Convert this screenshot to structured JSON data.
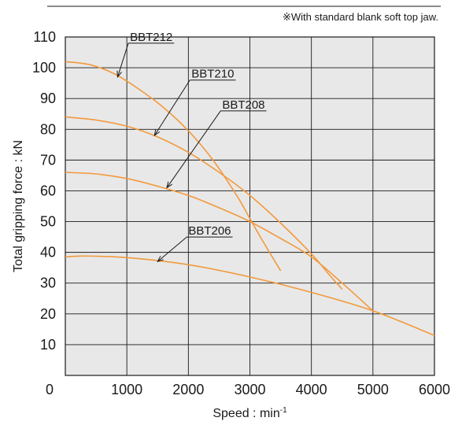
{
  "note": "※With standard blank soft top jaw.",
  "colors": {
    "plot_bg": "#e8e8e8",
    "grid": "#1a1a1a",
    "curve": "#f29a3c",
    "leader": "#1a1a1a",
    "text": "#1a1a1a"
  },
  "chart_data": {
    "type": "line",
    "xlabel": "Speed : min-1",
    "ylabel": "Total gripping force : kN",
    "xlim": [
      0,
      6000
    ],
    "ylim": [
      0,
      110
    ],
    "xticks": [
      0,
      1000,
      2000,
      3000,
      4000,
      5000,
      6000
    ],
    "xtick_labels": [
      "0",
      "1000",
      "2000",
      "3000",
      "4000",
      "5000",
      "6000"
    ],
    "yticks": [
      0,
      10,
      20,
      30,
      40,
      50,
      60,
      70,
      80,
      90,
      100,
      110
    ],
    "ytick_labels": [
      "0",
      "10",
      "20",
      "30",
      "40",
      "50",
      "60",
      "70",
      "80",
      "90",
      "100",
      "110"
    ],
    "grid": true,
    "series": [
      {
        "name": "BBT212",
        "x": [
          0,
          400,
          800,
          1200,
          1600,
          2000,
          2400,
          2800,
          3000,
          3200,
          3500
        ],
        "y": [
          102,
          101,
          98,
          93,
          87,
          79.5,
          70,
          58,
          51,
          44,
          34
        ],
        "label_anchor": [
          1050,
          108
        ],
        "arrow_tip": [
          850,
          97
        ]
      },
      {
        "name": "BBT210",
        "x": [
          0,
          500,
          1000,
          1500,
          2000,
          2500,
          3000,
          3500,
          4000,
          4300,
          4500
        ],
        "y": [
          84,
          83,
          81,
          77.5,
          72.5,
          66,
          58.5,
          49.5,
          39.5,
          32.5,
          28
        ],
        "label_anchor": [
          2050,
          96
        ],
        "arrow_tip": [
          1450,
          78
        ]
      },
      {
        "name": "BBT208",
        "x": [
          0,
          500,
          1000,
          1500,
          2000,
          2500,
          3000,
          3500,
          4000,
          4500,
          5000
        ],
        "y": [
          66,
          65.5,
          64,
          61.5,
          58.5,
          54.5,
          50,
          44.5,
          38.5,
          30,
          21
        ],
        "label_anchor": [
          2550,
          86
        ],
        "arrow_tip": [
          1650,
          61
        ]
      },
      {
        "name": "BBT206",
        "x": [
          0,
          300,
          1000,
          2000,
          3000,
          4000,
          5000,
          6000
        ],
        "y": [
          38.5,
          38.8,
          38.3,
          36,
          32,
          27,
          21,
          13
        ],
        "label_anchor": [
          2000,
          45
        ],
        "arrow_tip": [
          1500,
          37
        ]
      }
    ]
  }
}
